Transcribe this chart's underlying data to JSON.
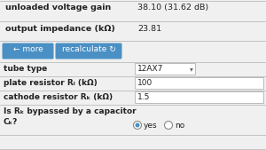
{
  "bg_color": "#f0f0f0",
  "white": "#ffffff",
  "blue": "#4a90c4",
  "border_color": "#bbbbbb",
  "text_color": "#222222",
  "gray_text": "#666666",
  "row1_label": "unloaded voltage gain",
  "row1_value": "38.10 (31.62 dB)",
  "row2_label": "output impedance (kΩ)",
  "row2_value": "23.81",
  "btn1_label": "← more",
  "btn2_label": "recalculate ↻",
  "field1_label": "tube type",
  "field1_value": "12AX7",
  "field2_label": "plate resistor Rₗ (kΩ)",
  "field2_value": "100",
  "field3_label": "cathode resistor Rₖ (kΩ)",
  "field3_value": "1.5",
  "field4_label_1": "Is Rₖ bypassed by a capacitor",
  "field4_label_2": "Cₖ?",
  "radio_yes": "yes",
  "radio_no": "no",
  "figw": 3.0,
  "figh": 1.69,
  "dpi": 100
}
